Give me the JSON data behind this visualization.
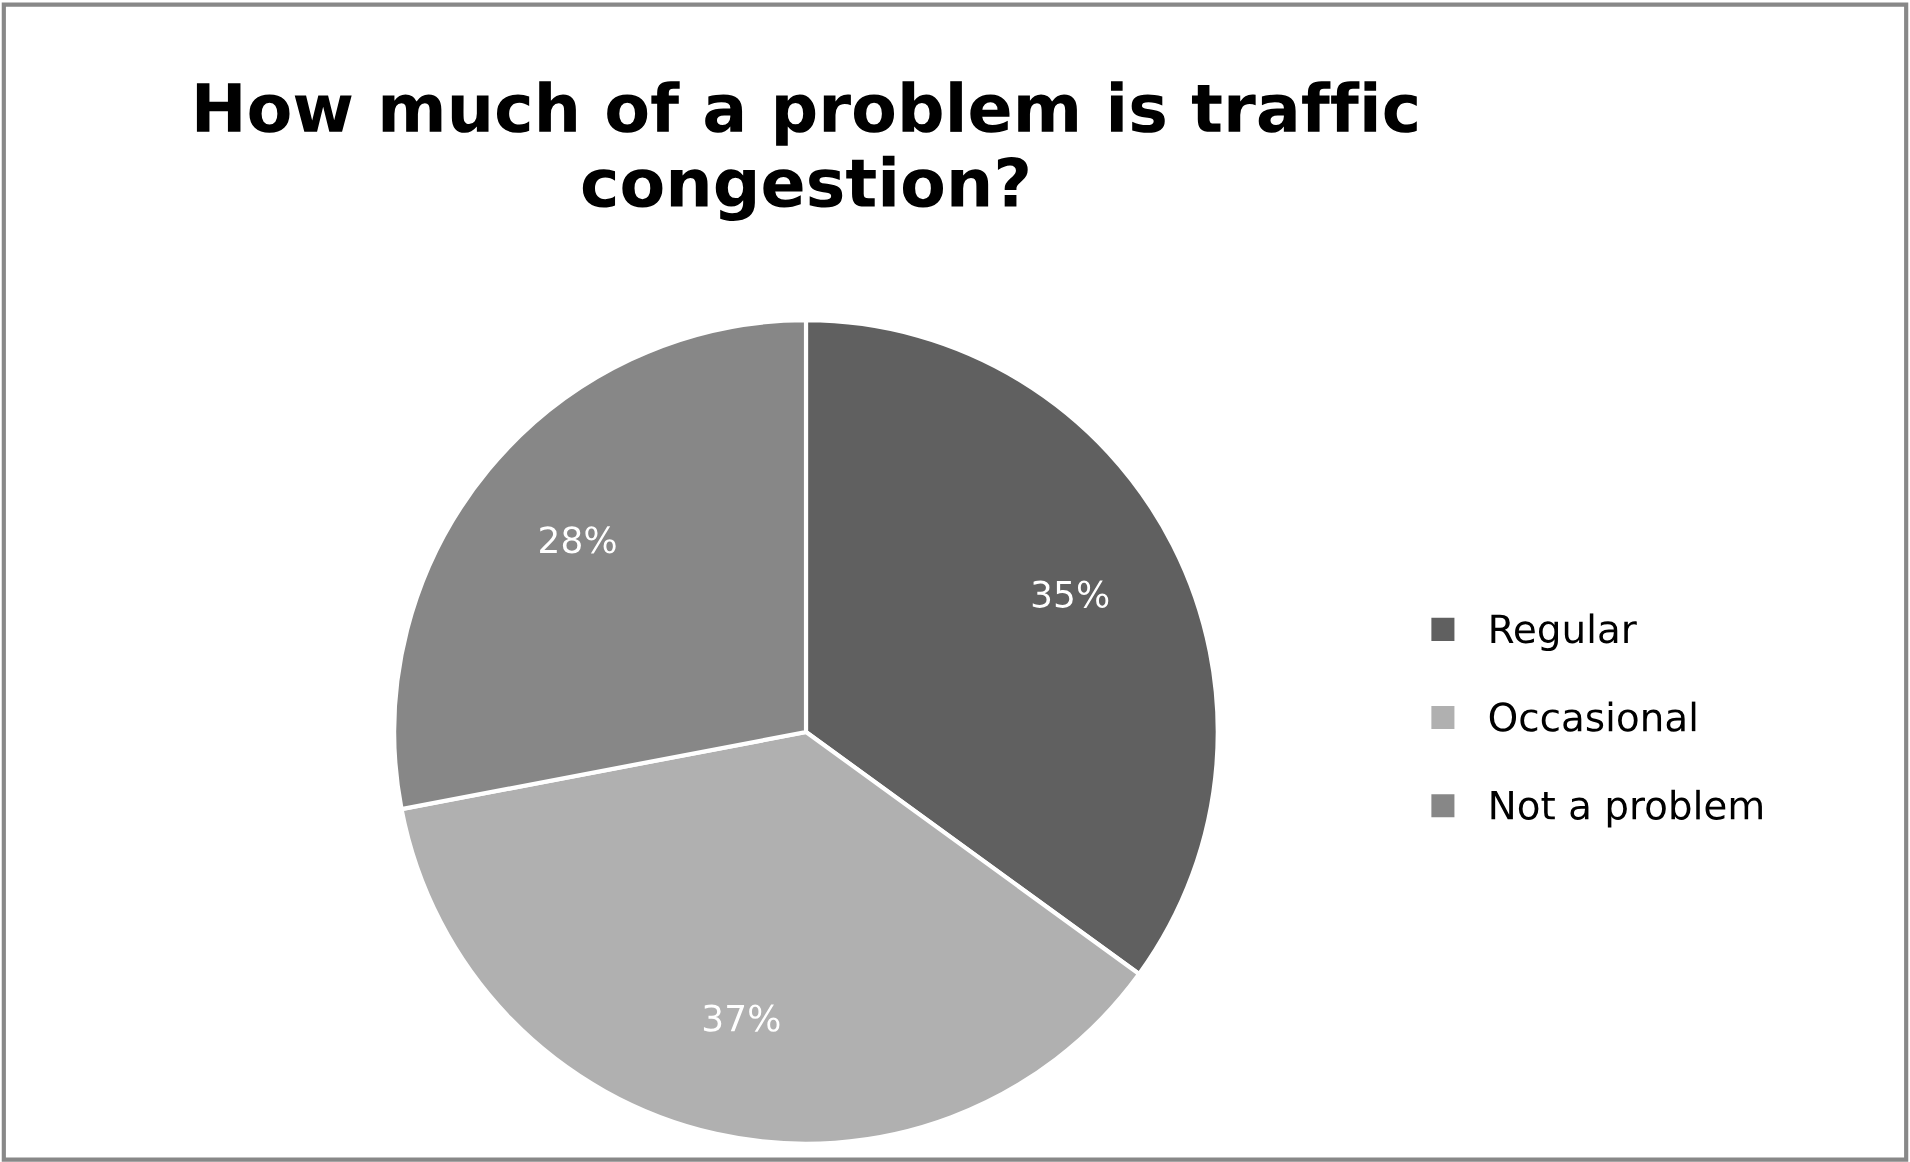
{
  "chart_data": {
    "type": "pie",
    "title": "How much of a problem is traffic congestion?",
    "categories": [
      "Regular",
      "Occasional",
      "Not a problem"
    ],
    "values": [
      35,
      37,
      28
    ],
    "colors": [
      "#606060",
      "#b0b0b0",
      "#878787"
    ],
    "value_labels": [
      "35%",
      "37%",
      "28%"
    ],
    "legend": "right"
  }
}
